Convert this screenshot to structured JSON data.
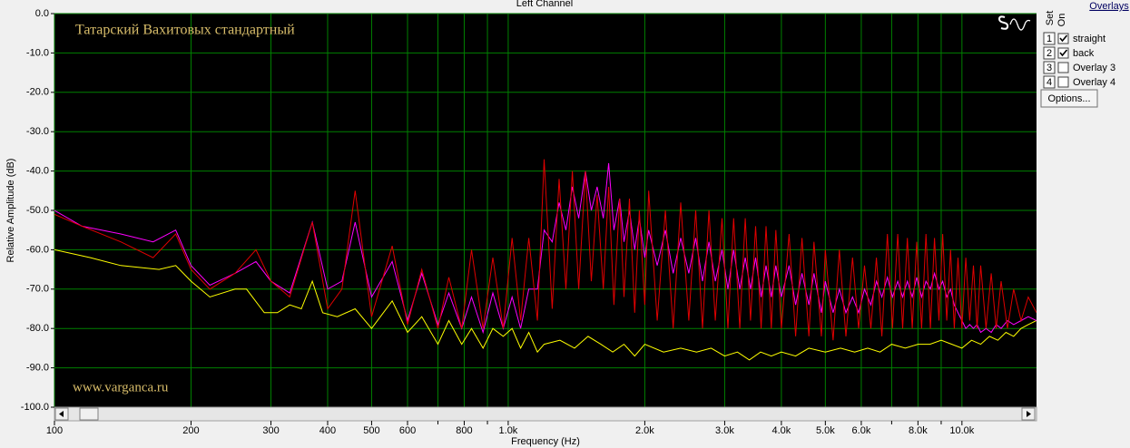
{
  "chart_data": {
    "type": "line",
    "title": "Left Channel",
    "x_label": "Frequency (Hz)",
    "y_label": "Relative Amplitude (dB)",
    "annotations": [
      "Татарский Вахитовых стандартный",
      "www.varganca.ru"
    ],
    "log_x": true,
    "grid": true,
    "grid_color": "#008000",
    "background": "#000000",
    "xlim": [
      100,
      14600
    ],
    "ylim": [
      -100,
      0
    ],
    "xticks": [
      100,
      200,
      300,
      400,
      500,
      600,
      800,
      {
        "value": 1000,
        "label": "1.0k"
      },
      {
        "value": 2000,
        "label": "2.0k"
      },
      {
        "value": 3000,
        "label": "3.0k"
      },
      {
        "value": 4000,
        "label": "4.0k"
      },
      {
        "value": 5000,
        "label": "5.0k"
      },
      {
        "value": 6000,
        "label": "6.0k"
      },
      {
        "value": 8000,
        "label": "8.0k"
      },
      {
        "value": 10000,
        "label": "10.0k"
      }
    ],
    "xminor": [
      700,
      900,
      7000,
      9000
    ],
    "yticks": [
      {
        "value": 0,
        "label": "0.0"
      },
      {
        "value": -10,
        "label": "-10.0"
      },
      {
        "value": -20,
        "label": "-20.0"
      },
      {
        "value": -30,
        "label": "-30.0"
      },
      {
        "value": -40,
        "label": "-40.0"
      },
      {
        "value": -50,
        "label": "-50.0"
      },
      {
        "value": -60,
        "label": "-60.0"
      },
      {
        "value": -70,
        "label": "-70.0"
      },
      {
        "value": -80,
        "label": "-80.0"
      },
      {
        "value": -90,
        "label": "-90.0"
      },
      {
        "value": -100,
        "label": "-100.0"
      }
    ],
    "legend": {
      "title": "Overlays",
      "set_label": "Set",
      "on_label": "On",
      "button": "Options..."
    },
    "series": [
      {
        "name": "straight",
        "set": "1",
        "on": true,
        "color": "#e00000",
        "x": [
          100,
          115,
          140,
          165,
          185,
          200,
          220,
          250,
          278,
          300,
          330,
          370,
          400,
          430,
          460,
          500,
          555,
          600,
          645,
          700,
          740,
          790,
          830,
          880,
          925,
          975,
          1020,
          1065,
          1110,
          1160,
          1200,
          1250,
          1295,
          1340,
          1385,
          1430,
          1480,
          1525,
          1570,
          1620,
          1665,
          1710,
          1760,
          1800,
          1850,
          1900,
          1945,
          2000,
          2040,
          2130,
          2220,
          2310,
          2400,
          2500,
          2590,
          2680,
          2770,
          2860,
          2960,
          3050,
          3140,
          3240,
          3330,
          3420,
          3510,
          3610,
          3700,
          3800,
          3890,
          4000,
          4160,
          4300,
          4440,
          4600,
          4720,
          4900,
          5000,
          5200,
          5370,
          5550,
          5740,
          5920,
          6100,
          6300,
          6480,
          6660,
          6850,
          7030,
          7220,
          7400,
          7580,
          7770,
          7950,
          8150,
          8330,
          8520,
          8700,
          8900,
          9070,
          9260,
          9440,
          9620,
          9800,
          10000,
          10200,
          10400,
          10600,
          10800,
          11000,
          11300,
          11600,
          11900,
          12200,
          12600,
          13000,
          13500,
          14000,
          14600
        ],
        "values": [
          -51,
          -54,
          -58,
          -62,
          -56,
          -65,
          -70,
          -66,
          -60,
          -68,
          -72,
          -53,
          -75,
          -70,
          -45,
          -77,
          -59,
          -79,
          -65,
          -80,
          -67,
          -80,
          -60,
          -80,
          -62,
          -80,
          -57,
          -78,
          -57,
          -78,
          -37,
          -75,
          -42,
          -70,
          -40,
          -70,
          -40,
          -68,
          -46,
          -70,
          -44,
          -74,
          -47,
          -72,
          -47,
          -76,
          -50,
          -74,
          -45,
          -78,
          -50,
          -80,
          -48,
          -78,
          -50,
          -80,
          -50,
          -78,
          -52,
          -80,
          -52,
          -80,
          -52,
          -78,
          -54,
          -80,
          -54,
          -80,
          -55,
          -80,
          -56,
          -82,
          -57,
          -82,
          -58,
          -82,
          -60,
          -83,
          -60,
          -82,
          -62,
          -80,
          -64,
          -80,
          -62,
          -82,
          -56,
          -80,
          -56,
          -80,
          -57,
          -80,
          -58,
          -80,
          -56,
          -80,
          -57,
          -78,
          -56,
          -78,
          -60,
          -80,
          -62,
          -80,
          -62,
          -78,
          -64,
          -80,
          -64,
          -80,
          -66,
          -80,
          -68,
          -80,
          -70,
          -78,
          -72,
          -76
        ]
      },
      {
        "name": "back",
        "set": "2",
        "on": true,
        "color": "#ff00ff",
        "x": [
          100,
          115,
          140,
          165,
          185,
          200,
          220,
          250,
          278,
          300,
          330,
          370,
          400,
          430,
          460,
          500,
          555,
          600,
          645,
          700,
          740,
          790,
          830,
          880,
          925,
          975,
          1020,
          1065,
          1110,
          1160,
          1200,
          1250,
          1295,
          1340,
          1385,
          1430,
          1480,
          1525,
          1570,
          1620,
          1665,
          1710,
          1760,
          1800,
          1850,
          1900,
          1945,
          2000,
          2040,
          2130,
          2220,
          2310,
          2400,
          2500,
          2590,
          2680,
          2770,
          2860,
          2960,
          3050,
          3140,
          3240,
          3330,
          3420,
          3510,
          3610,
          3700,
          3800,
          3890,
          4000,
          4160,
          4300,
          4440,
          4600,
          4720,
          4900,
          5000,
          5200,
          5370,
          5550,
          5740,
          5920,
          6100,
          6300,
          6480,
          6660,
          6850,
          7030,
          7220,
          7400,
          7580,
          7770,
          7950,
          8150,
          8330,
          8520,
          8700,
          8900,
          9070,
          9260,
          9440,
          9620,
          9800,
          10000,
          10200,
          10400,
          10600,
          10800,
          11000,
          11300,
          11600,
          11900,
          12200,
          12600,
          13000,
          13500,
          14000,
          14600
        ],
        "values": [
          -50,
          -54,
          -56,
          -58,
          -55,
          -64,
          -69,
          -66,
          -63,
          -68,
          -71,
          -53,
          -70,
          -68,
          -53,
          -72,
          -63,
          -78,
          -66,
          -79,
          -71,
          -80,
          -72,
          -81,
          -71,
          -80,
          -72,
          -80,
          -70,
          -70,
          -55,
          -58,
          -48,
          -55,
          -44,
          -52,
          -40,
          -50,
          -44,
          -52,
          -38,
          -55,
          -47,
          -58,
          -50,
          -60,
          -52,
          -62,
          -55,
          -64,
          -55,
          -66,
          -57,
          -66,
          -57,
          -68,
          -58,
          -68,
          -60,
          -70,
          -60,
          -70,
          -62,
          -70,
          -62,
          -72,
          -64,
          -72,
          -64,
          -72,
          -64,
          -74,
          -66,
          -74,
          -66,
          -76,
          -68,
          -76,
          -70,
          -76,
          -72,
          -76,
          -70,
          -74,
          -68,
          -72,
          -67,
          -72,
          -68,
          -72,
          -68,
          -72,
          -67,
          -72,
          -68,
          -70,
          -66,
          -70,
          -68,
          -72,
          -70,
          -74,
          -76,
          -78,
          -80,
          -79,
          -80,
          -79,
          -81,
          -80,
          -81,
          -79,
          -80,
          -78,
          -79,
          -78,
          -77,
          -78
        ]
      },
      {
        "name": "Overlay 3",
        "set": "3",
        "on": false,
        "color": "#0000ff",
        "x": [],
        "values": []
      },
      {
        "name": "Overlay 4",
        "set": "4",
        "on": false,
        "color": "#00e0e0",
        "x": [],
        "values": []
      },
      {
        "color": "#ffff00",
        "x": [
          100,
          120,
          140,
          170,
          185,
          200,
          220,
          250,
          265,
          290,
          310,
          330,
          350,
          370,
          390,
          420,
          460,
          500,
          555,
          600,
          645,
          700,
          740,
          790,
          830,
          880,
          925,
          975,
          1020,
          1065,
          1110,
          1160,
          1200,
          1300,
          1400,
          1500,
          1600,
          1700,
          1800,
          1900,
          2000,
          2200,
          2400,
          2600,
          2800,
          3000,
          3200,
          3400,
          3600,
          3800,
          4000,
          4300,
          4600,
          5000,
          5400,
          5800,
          6200,
          6600,
          7000,
          7500,
          8000,
          8500,
          9000,
          9500,
          10000,
          10500,
          11000,
          11500,
          12000,
          12500,
          13000,
          13500,
          14000,
          14600
        ],
        "values": [
          -60,
          -62,
          -64,
          -65,
          -64,
          -68,
          -72,
          -70,
          -70,
          -76,
          -76,
          -74,
          -75,
          -68,
          -76,
          -77,
          -75,
          -80,
          -73,
          -81,
          -77,
          -84,
          -78,
          -84,
          -80,
          -85,
          -80,
          -82,
          -80,
          -85,
          -81,
          -86,
          -84,
          -83,
          -85,
          -82,
          -84,
          -86,
          -84,
          -87,
          -84,
          -86,
          -85,
          -86,
          -85,
          -87,
          -86,
          -88,
          -86,
          -87,
          -86,
          -87,
          -85,
          -86,
          -85,
          -86,
          -85,
          -86,
          -84,
          -85,
          -84,
          -84,
          -83,
          -84,
          -85,
          -83,
          -84,
          -82,
          -83,
          -81,
          -82,
          -80,
          -79,
          -78
        ]
      }
    ]
  }
}
